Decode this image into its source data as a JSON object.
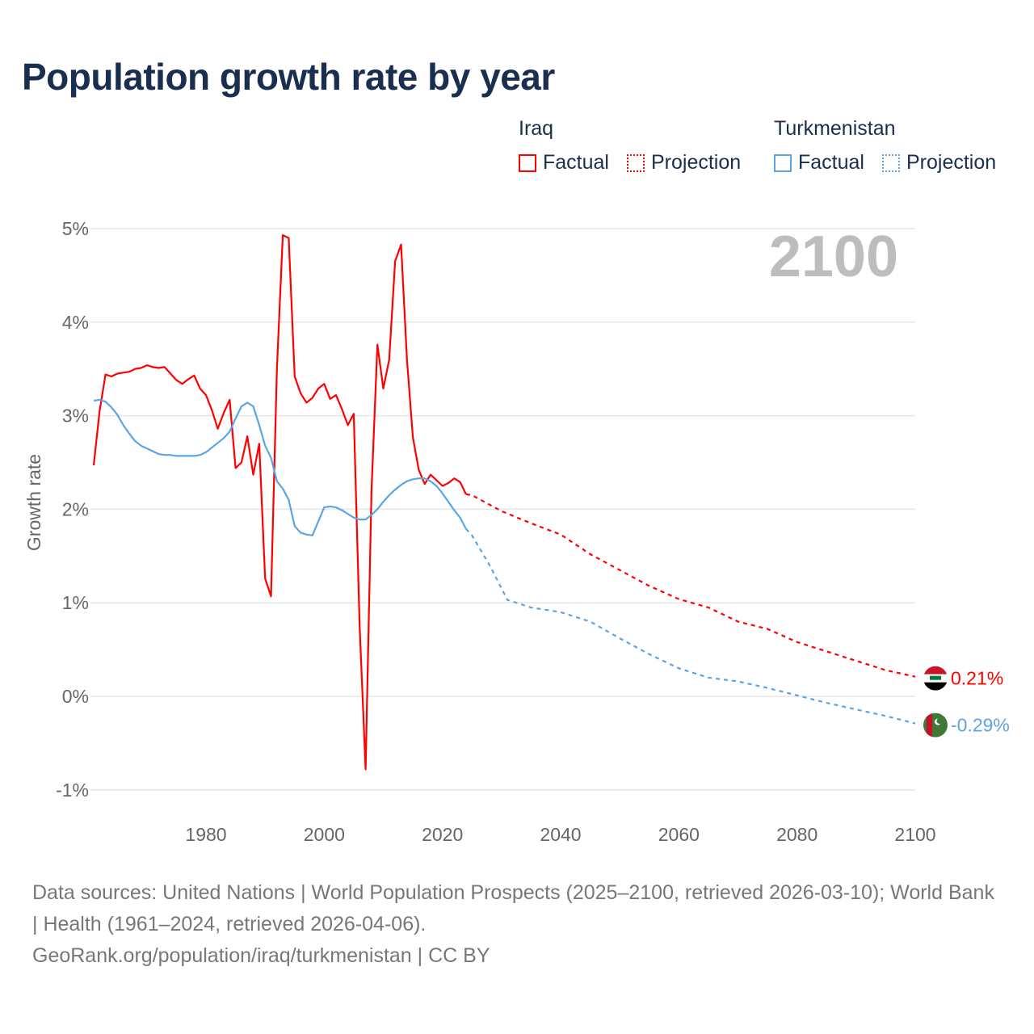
{
  "title": "Population growth rate by year",
  "legend": [
    {
      "country": "Iraq",
      "factual": "Factual",
      "projection": "Projection",
      "color": "#ff0000"
    },
    {
      "country": "Turkmenistan",
      "factual": "Factual",
      "projection": "Projection",
      "color": "#5ba4e6"
    }
  ],
  "sources": {
    "line1": "Data sources: United Nations | World Population Prospects (2025–2100, retrieved 2026-03-10); World Bank | Health (1961–2024, retrieved 2026-04-06).",
    "line2": "GeoRank.org/population/iraq/turkmenistan | CC BY"
  },
  "chart_data": {
    "type": "line",
    "title": "Population growth rate by year",
    "xlabel": "",
    "ylabel": "Growth rate",
    "xlim": [
      1961,
      2100
    ],
    "ylim": [
      -1,
      5
    ],
    "x_ticks": [
      "1980",
      "2000",
      "2020",
      "2040",
      "2060",
      "2080",
      "2100"
    ],
    "x_tick_values": [
      1980,
      2000,
      2020,
      2040,
      2060,
      2080,
      2100
    ],
    "y_ticks": [
      "-1%",
      "0%",
      "1%",
      "2%",
      "3%",
      "4%",
      "5%"
    ],
    "y_tick_values": [
      -1,
      0,
      1,
      2,
      3,
      4,
      5
    ],
    "grid": true,
    "year_annotation": "2100",
    "series": [
      {
        "name": "Iraq",
        "color": "#ff0000",
        "end_label": "0.21%",
        "factual": {
          "x": [
            1961,
            1962,
            1963,
            1964,
            1965,
            1966,
            1967,
            1968,
            1969,
            1970,
            1971,
            1972,
            1973,
            1974,
            1975,
            1976,
            1977,
            1978,
            1979,
            1980,
            1981,
            1982,
            1983,
            1984,
            1985,
            1986,
            1987,
            1988,
            1989,
            1990,
            1991,
            1992,
            1993,
            1994,
            1995,
            1996,
            1997,
            1998,
            1999,
            2000,
            2001,
            2002,
            2003,
            2004,
            2005,
            2006,
            2007,
            2008,
            2009,
            2010,
            2011,
            2012,
            2013,
            2014,
            2015,
            2016,
            2017,
            2018,
            2019,
            2020,
            2021,
            2022,
            2023,
            2024
          ],
          "y": [
            2.47,
            3.05,
            3.44,
            3.42,
            3.45,
            3.46,
            3.47,
            3.5,
            3.51,
            3.54,
            3.52,
            3.51,
            3.52,
            3.45,
            3.38,
            3.34,
            3.39,
            3.43,
            3.29,
            3.22,
            3.06,
            2.86,
            3.03,
            3.17,
            2.44,
            2.5,
            2.78,
            2.37,
            2.7,
            1.26,
            1.07,
            3.5,
            4.93,
            4.9,
            3.42,
            3.24,
            3.14,
            3.19,
            3.29,
            3.34,
            3.18,
            3.22,
            3.07,
            2.9,
            3.02,
            0.75,
            -0.78,
            2.2,
            3.76,
            3.29,
            3.6,
            4.65,
            4.83,
            3.6,
            2.77,
            2.42,
            2.27,
            2.37,
            2.31,
            2.25,
            2.28,
            2.33,
            2.29,
            2.16
          ]
        },
        "projection": {
          "x": [
            2024,
            2025,
            2030,
            2035,
            2040,
            2045,
            2050,
            2055,
            2060,
            2065,
            2070,
            2075,
            2080,
            2085,
            2090,
            2095,
            2100
          ],
          "y": [
            2.16,
            2.15,
            1.98,
            1.85,
            1.73,
            1.52,
            1.35,
            1.18,
            1.04,
            0.95,
            0.8,
            0.72,
            0.58,
            0.48,
            0.38,
            0.28,
            0.21
          ]
        }
      },
      {
        "name": "Turkmenistan",
        "color": "#5ba4e6",
        "end_label": "-0.29%",
        "factual": {
          "x": [
            1961,
            1962,
            1963,
            1964,
            1965,
            1966,
            1967,
            1968,
            1969,
            1970,
            1971,
            1972,
            1973,
            1974,
            1975,
            1976,
            1977,
            1978,
            1979,
            1980,
            1981,
            1982,
            1983,
            1984,
            1985,
            1986,
            1987,
            1988,
            1989,
            1990,
            1991,
            1992,
            1993,
            1994,
            1995,
            1996,
            1997,
            1998,
            1999,
            2000,
            2001,
            2002,
            2003,
            2004,
            2005,
            2006,
            2007,
            2008,
            2009,
            2010,
            2011,
            2012,
            2013,
            2014,
            2015,
            2016,
            2017,
            2018,
            2019,
            2020,
            2021,
            2022,
            2023,
            2024
          ],
          "y": [
            3.16,
            3.17,
            3.15,
            3.09,
            3.01,
            2.9,
            2.81,
            2.73,
            2.68,
            2.65,
            2.62,
            2.59,
            2.58,
            2.58,
            2.57,
            2.57,
            2.57,
            2.57,
            2.58,
            2.61,
            2.66,
            2.71,
            2.76,
            2.83,
            2.97,
            3.1,
            3.14,
            3.1,
            2.9,
            2.68,
            2.55,
            2.3,
            2.22,
            2.1,
            1.82,
            1.75,
            1.73,
            1.72,
            1.87,
            2.02,
            2.03,
            2.02,
            1.99,
            1.95,
            1.91,
            1.89,
            1.89,
            1.94,
            2.0,
            2.08,
            2.15,
            2.21,
            2.26,
            2.3,
            2.32,
            2.33,
            2.33,
            2.3,
            2.25,
            2.17,
            2.08,
            1.99,
            1.91,
            1.79
          ]
        },
        "projection": {
          "x": [
            2024,
            2025,
            2028,
            2031,
            2035,
            2040,
            2045,
            2050,
            2055,
            2060,
            2065,
            2070,
            2075,
            2080,
            2085,
            2090,
            2095,
            2100
          ],
          "y": [
            1.79,
            1.72,
            1.4,
            1.03,
            0.95,
            0.9,
            0.8,
            0.62,
            0.45,
            0.3,
            0.2,
            0.16,
            0.09,
            0.01,
            -0.07,
            -0.14,
            -0.21,
            -0.29
          ]
        }
      }
    ]
  }
}
